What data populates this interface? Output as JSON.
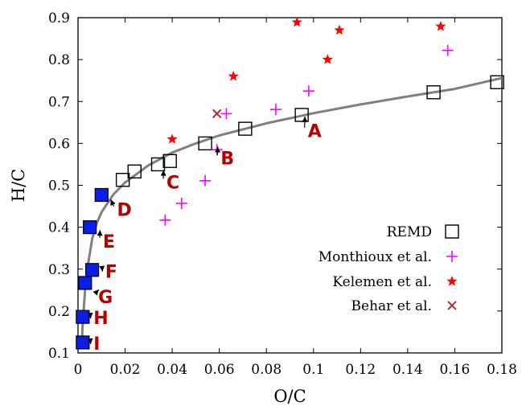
{
  "chart_data": {
    "type": "scatter",
    "xlabel": "O/C",
    "ylabel": "H/C",
    "xlim": [
      0,
      0.18
    ],
    "ylim": [
      0.1,
      0.9
    ],
    "xticks": [
      0,
      0.02,
      0.04,
      0.06,
      0.08,
      0.1,
      0.12,
      0.14,
      0.16,
      0.18
    ],
    "xtick_labels": [
      "0",
      "0.02",
      "0.04",
      "0.06",
      "0.08",
      "0.1",
      "0.12",
      "0.14",
      "0.16",
      "0.18"
    ],
    "yticks": [
      0.1,
      0.2,
      0.3,
      0.4,
      0.5,
      0.6,
      0.7,
      0.8,
      0.9
    ],
    "ytick_labels": [
      "0.1",
      "0.2",
      "0.3",
      "0.4",
      "0.5",
      "0.6",
      "0.7",
      "0.8",
      "0.9"
    ],
    "grid": false,
    "legend_position": "bottom-right",
    "colors": {
      "REMD": "#000000",
      "REMD_filled": "#0a1ee6",
      "Monthioux et al.": "#ff00ff",
      "Kelemen et al.": "#ff0000",
      "Behar et al.": "#b03030",
      "fit_line": "#808080",
      "annotation": "#b30000"
    },
    "series": [
      {
        "name": "REMD",
        "marker": "open-square",
        "points": [
          [
            0.019,
            0.513
          ],
          [
            0.024,
            0.533
          ],
          [
            0.034,
            0.55
          ],
          [
            0.039,
            0.558
          ],
          [
            0.054,
            0.6
          ],
          [
            0.071,
            0.635
          ],
          [
            0.095,
            0.668
          ],
          [
            0.151,
            0.722
          ],
          [
            0.178,
            0.746
          ]
        ]
      },
      {
        "name": "REMD (filled)",
        "marker": "filled-square",
        "points": [
          [
            0.01,
            0.477
          ],
          [
            0.005,
            0.4
          ],
          [
            0.006,
            0.298
          ],
          [
            0.003,
            0.267
          ],
          [
            0.002,
            0.186
          ],
          [
            0.002,
            0.125
          ]
        ]
      },
      {
        "name": "Monthioux et al.",
        "marker": "plus",
        "points": [
          [
            0.037,
            0.417
          ],
          [
            0.044,
            0.457
          ],
          [
            0.054,
            0.511
          ],
          [
            0.059,
            0.585
          ],
          [
            0.063,
            0.671
          ],
          [
            0.084,
            0.681
          ],
          [
            0.098,
            0.725
          ],
          [
            0.157,
            0.822
          ]
        ]
      },
      {
        "name": "Kelemen et al.",
        "marker": "star",
        "points": [
          [
            0.04,
            0.61
          ],
          [
            0.066,
            0.76
          ],
          [
            0.093,
            0.889
          ],
          [
            0.106,
            0.8
          ],
          [
            0.111,
            0.87
          ],
          [
            0.154,
            0.879
          ]
        ]
      },
      {
        "name": "Behar et al.",
        "marker": "cross",
        "points": [
          [
            0.059,
            0.671
          ]
        ]
      }
    ],
    "fit_curve": [
      [
        0.0015,
        0.11
      ],
      [
        0.002,
        0.172
      ],
      [
        0.003,
        0.25
      ],
      [
        0.004,
        0.302
      ],
      [
        0.006,
        0.372
      ],
      [
        0.008,
        0.41
      ],
      [
        0.01,
        0.436
      ],
      [
        0.015,
        0.478
      ],
      [
        0.02,
        0.507
      ],
      [
        0.03,
        0.548
      ],
      [
        0.04,
        0.578
      ],
      [
        0.05,
        0.6
      ],
      [
        0.06,
        0.619
      ],
      [
        0.08,
        0.648
      ],
      [
        0.1,
        0.672
      ],
      [
        0.12,
        0.693
      ],
      [
        0.14,
        0.712
      ],
      [
        0.16,
        0.73
      ],
      [
        0.18,
        0.756
      ]
    ],
    "annotations": [
      {
        "label": "A",
        "point": [
          0.095,
          0.668
        ],
        "text_at": [
          0.101,
          0.63
        ]
      },
      {
        "label": "B",
        "point": [
          0.058,
          0.596
        ],
        "text_at": [
          0.064,
          0.565
        ]
      },
      {
        "label": "C",
        "point": [
          0.035,
          0.54
        ],
        "text_at": [
          0.041,
          0.508
        ]
      },
      {
        "label": "D",
        "point": [
          0.0125,
          0.47
        ],
        "text_at": [
          0.02,
          0.442
        ]
      },
      {
        "label": "E",
        "point": [
          0.008,
          0.397
        ],
        "text_at": [
          0.014,
          0.367
        ]
      },
      {
        "label": "F",
        "point": [
          0.009,
          0.298
        ],
        "text_at": [
          0.015,
          0.295
        ]
      },
      {
        "label": "G",
        "point": [
          0.0075,
          0.255
        ],
        "text_at": [
          0.012,
          0.234
        ]
      },
      {
        "label": "H",
        "point": [
          0.004,
          0.186
        ],
        "text_at": [
          0.01,
          0.184
        ]
      },
      {
        "label": "I",
        "point": [
          0.004,
          0.125
        ],
        "text_at": [
          0.01,
          0.123
        ]
      }
    ],
    "legend": [
      {
        "label": "REMD",
        "marker": "open-square"
      },
      {
        "label": "Monthioux et al.",
        "marker": "plus"
      },
      {
        "label": "Kelemen et al.",
        "marker": "star"
      },
      {
        "label": "Behar et al.",
        "marker": "cross"
      }
    ]
  }
}
